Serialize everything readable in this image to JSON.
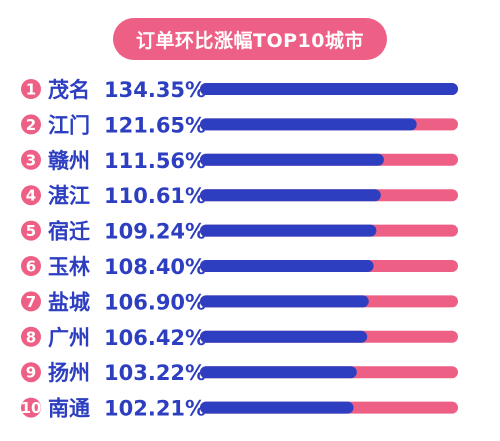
{
  "title": "订单环比涨幅TOP10城市",
  "colors": {
    "accent": "#ee5f86",
    "bar": "#2d3fc0",
    "text": "#2d3fc0"
  },
  "chart_data": {
    "type": "bar",
    "orientation": "horizontal",
    "title": "订单环比涨幅TOP10城市",
    "ranks": [
      "1",
      "2",
      "3",
      "4",
      "5",
      "6",
      "7",
      "8",
      "9",
      "10"
    ],
    "categories": [
      "茂名",
      "江门",
      "赣州",
      "湛江",
      "宿迁",
      "玉林",
      "盐城",
      "广州",
      "扬州",
      "南通"
    ],
    "values": [
      134.35,
      121.65,
      111.56,
      110.61,
      109.24,
      108.4,
      106.9,
      106.42,
      103.22,
      102.21
    ],
    "value_labels": [
      "134.35%",
      "121.65%",
      "111.56%",
      "110.61%",
      "109.24%",
      "108.40%",
      "106.90%",
      "106.42%",
      "103.22%",
      "102.21%"
    ],
    "unit": "%",
    "max": 134.35,
    "legend": "none",
    "grid": false
  }
}
